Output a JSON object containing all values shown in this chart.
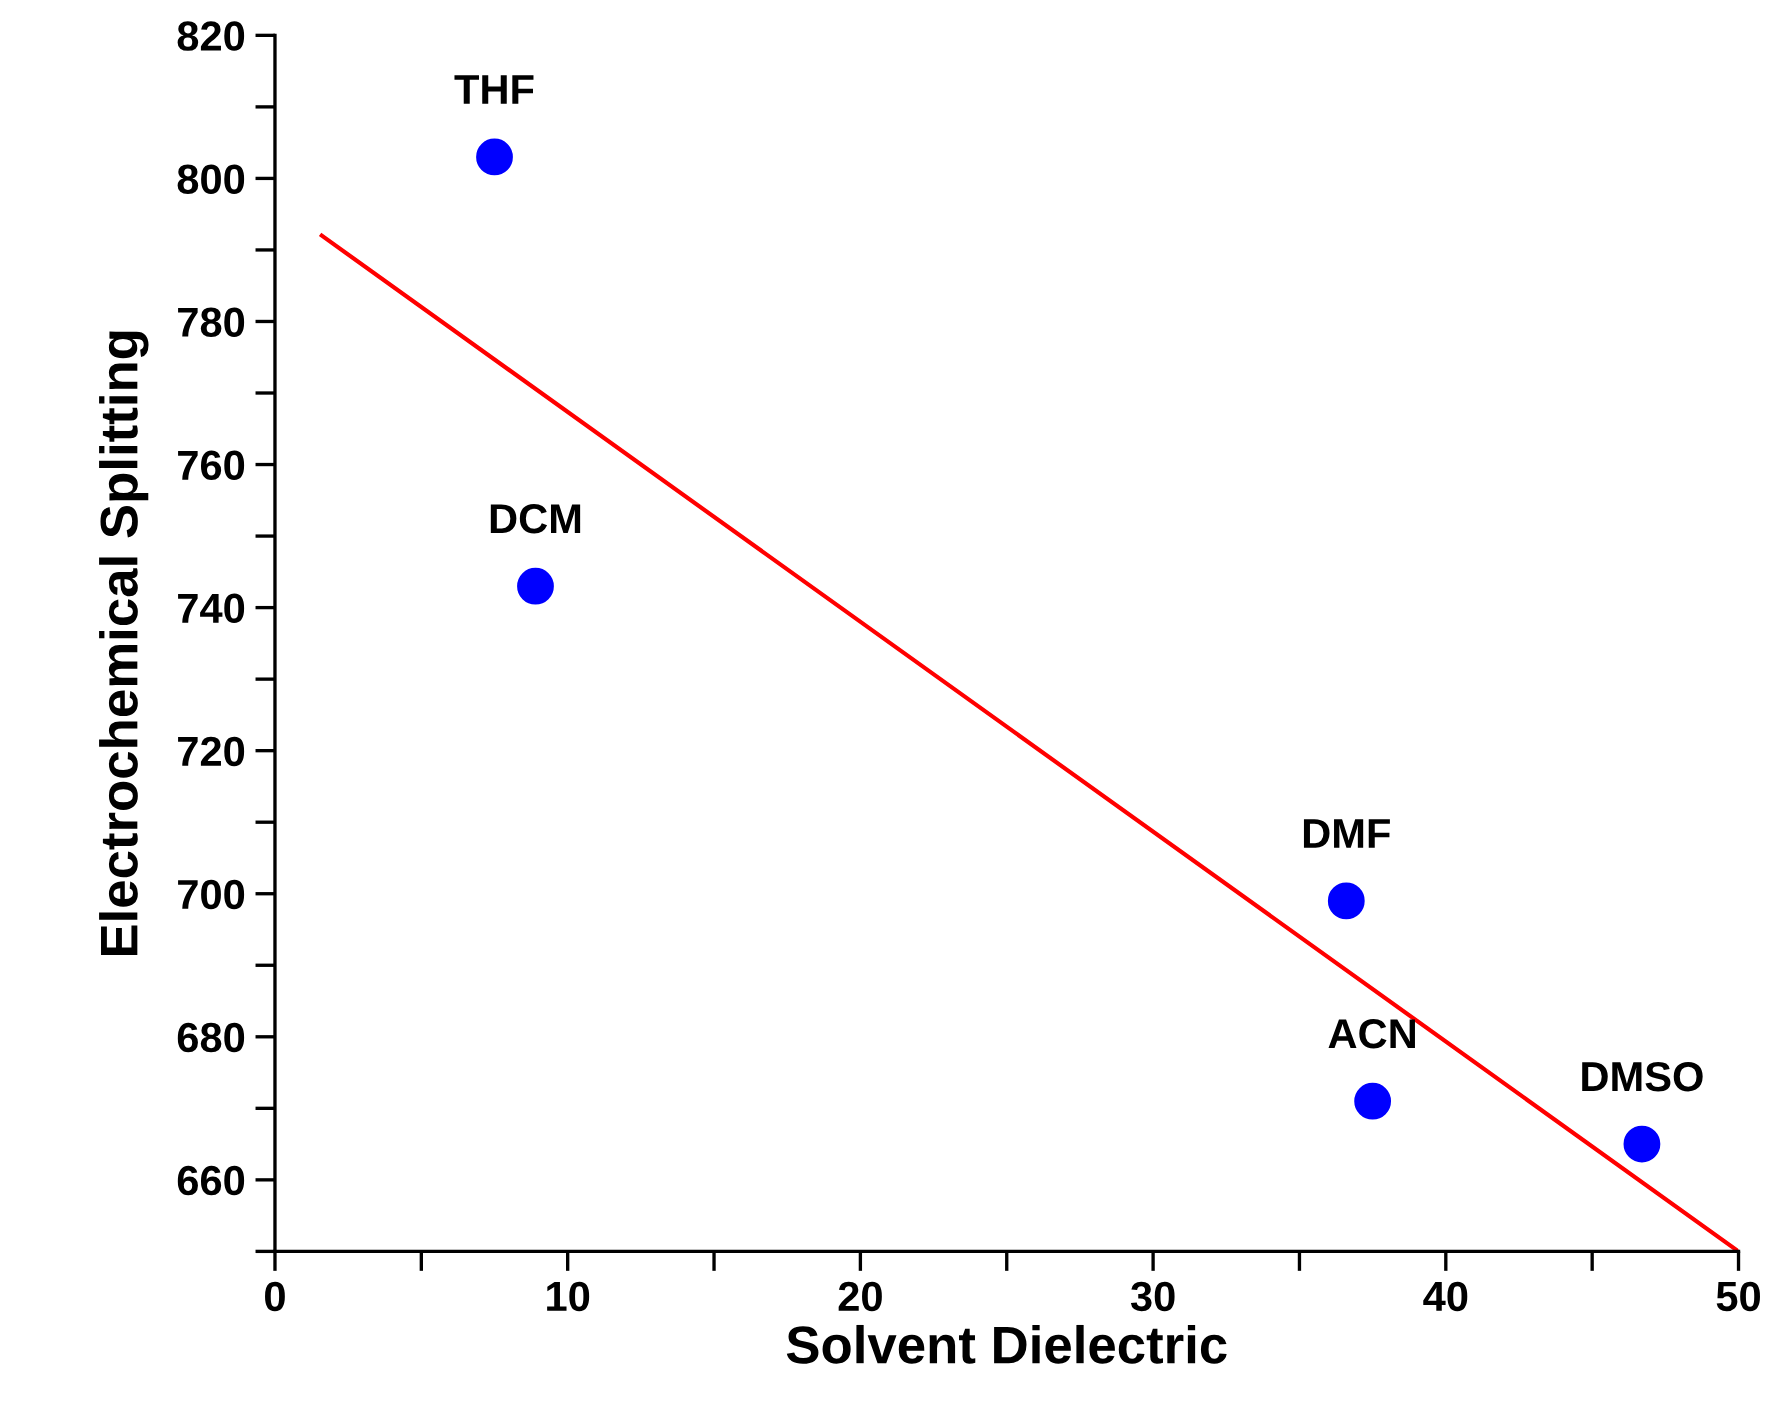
{
  "chart_data": {
    "type": "scatter",
    "xlabel": "Solvent Dielectric",
    "ylabel": "Electrochemical Splitting",
    "xlim": [
      0,
      50
    ],
    "ylim": [
      650,
      820
    ],
    "xticks": [
      0,
      {
        "value": 5,
        "label": null
      },
      10,
      {
        "value": 15,
        "label": null
      },
      20,
      {
        "value": 25,
        "label": null
      },
      30,
      {
        "value": 35,
        "label": null
      },
      40,
      {
        "value": 45,
        "label": null
      },
      50
    ],
    "yticks": [
      {
        "value": 650,
        "label": null
      },
      660,
      {
        "value": 670,
        "label": null
      },
      680,
      {
        "value": 690,
        "label": null
      },
      700,
      {
        "value": 710,
        "label": null
      },
      720,
      {
        "value": 730,
        "label": null
      },
      740,
      {
        "value": 750,
        "label": null
      },
      760,
      {
        "value": 770,
        "label": null
      },
      780,
      {
        "value": 790,
        "label": null
      },
      800,
      {
        "value": 810,
        "label": null
      },
      820
    ],
    "grid": false,
    "legend": false,
    "series": [
      {
        "color": "#0000ff",
        "marker": "circle",
        "x": [
          7.5,
          8.9,
          36.6,
          37.5,
          46.7
        ],
        "values": [
          803,
          743,
          699,
          671,
          665
        ]
      },
      {
        "type": "line",
        "color": "#ff0000",
        "marker": "none",
        "line_style": "solid",
        "x": [
          1.6,
          50
        ],
        "values": [
          792,
          650
        ]
      }
    ],
    "annotations": [
      {
        "text": "THF",
        "x": 7.5,
        "y": 803
      },
      {
        "text": "DCM",
        "x": 8.9,
        "y": 743
      },
      {
        "text": "DMF",
        "x": 36.6,
        "y": 699
      },
      {
        "text": "ACN",
        "x": 37.5,
        "y": 671
      },
      {
        "text": "DMSO",
        "x": 46.7,
        "y": 665
      }
    ]
  }
}
